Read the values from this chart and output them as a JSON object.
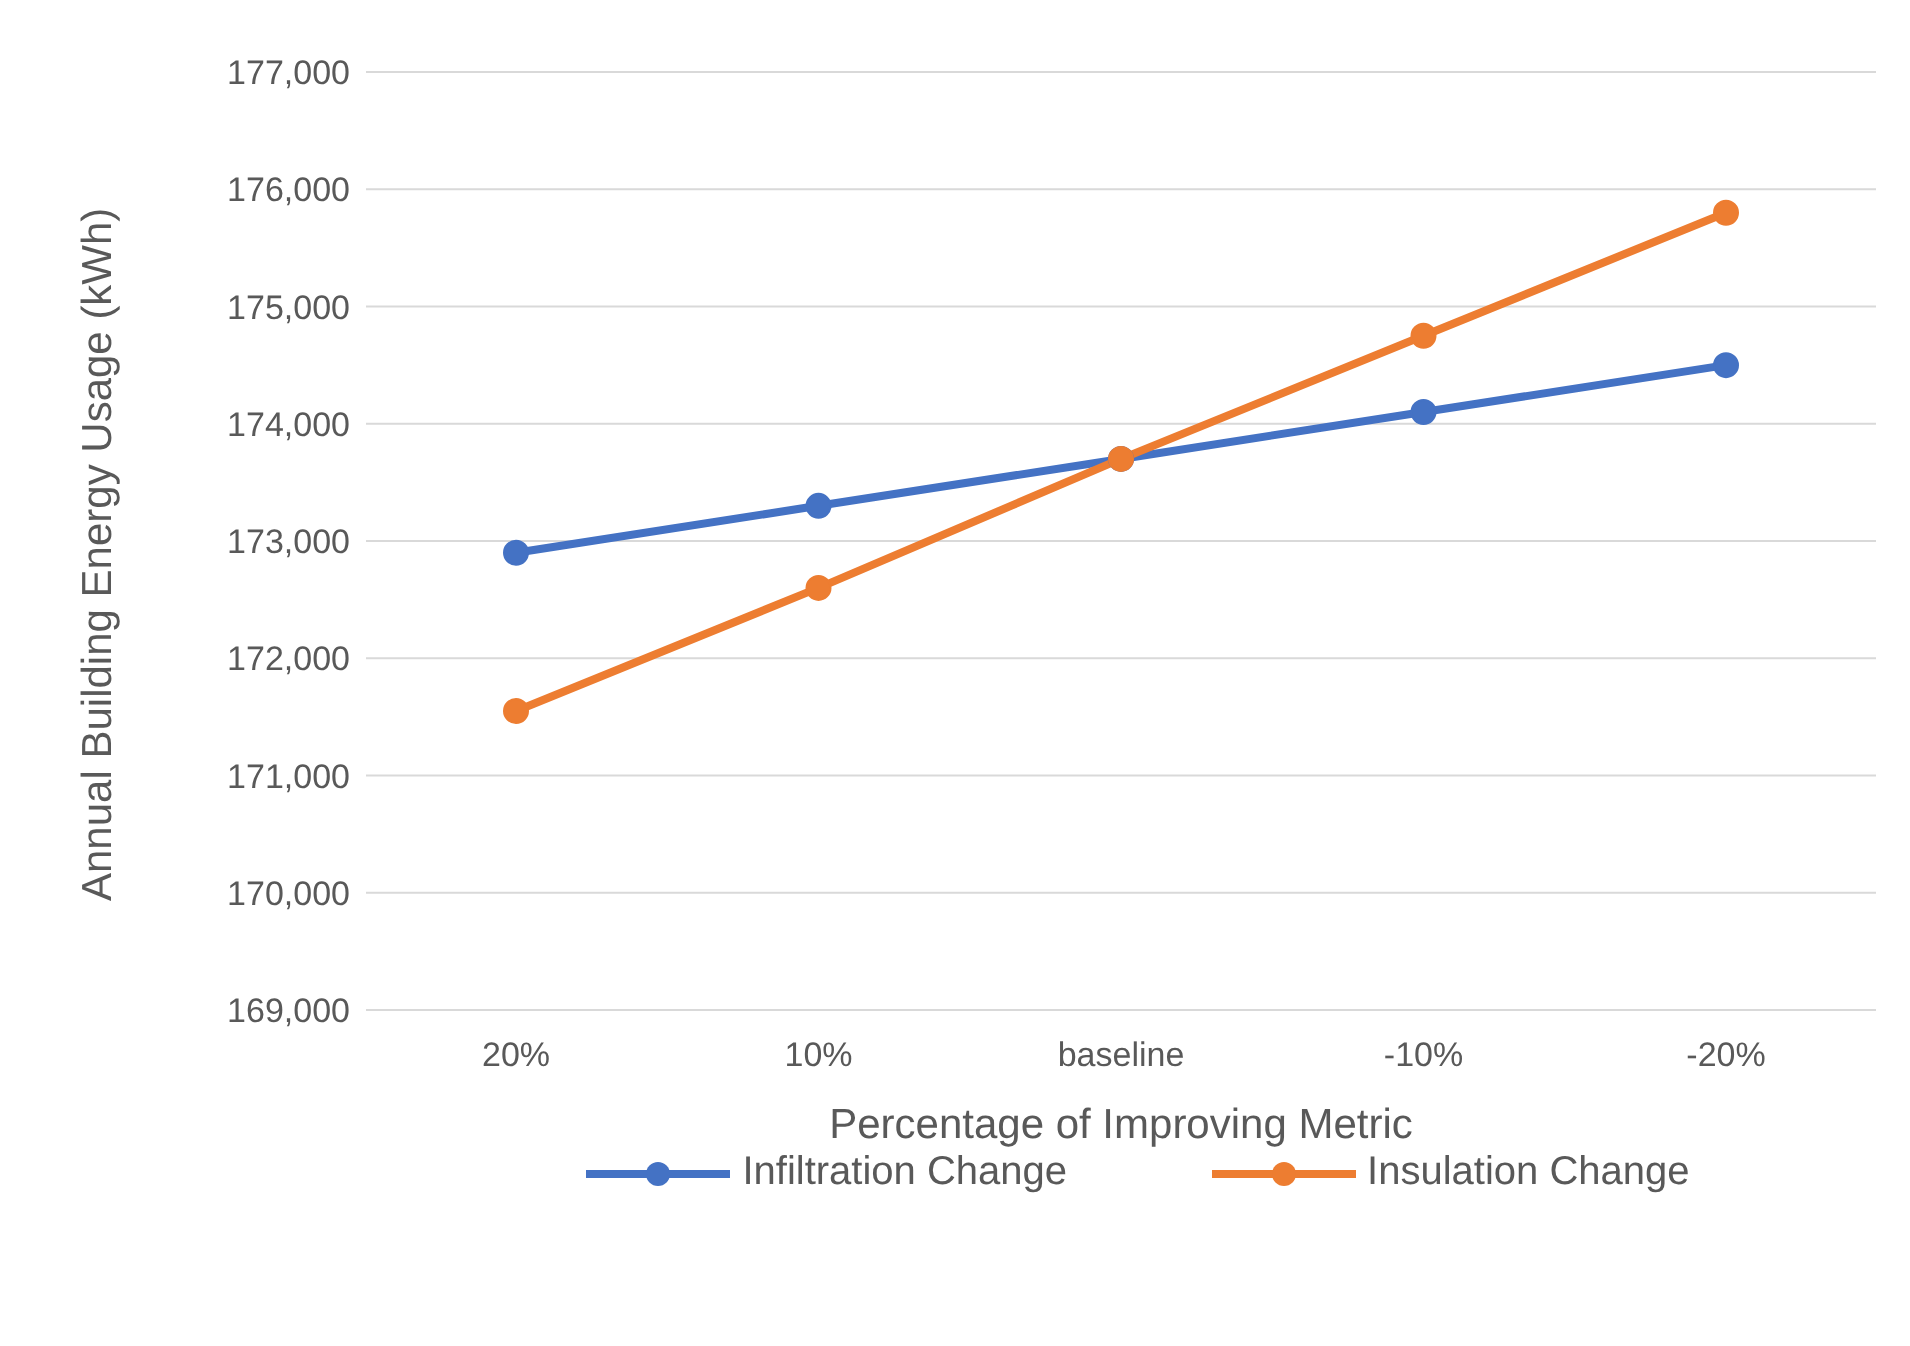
{
  "chart_data": {
    "type": "line",
    "xlabel": "Percentage of Improving Metric",
    "ylabel": "Annual Building Energy Usage (kWh)",
    "categories": [
      "20%",
      "10%",
      "baseline",
      "-10%",
      "-20%"
    ],
    "series": [
      {
        "name": "Infiltration Change",
        "color": "#4472c4",
        "values": [
          172900,
          173300,
          173700,
          174100,
          174500
        ]
      },
      {
        "name": "Insulation Change",
        "color": "#ed7d31",
        "values": [
          171550,
          172600,
          173700,
          174750,
          175800
        ]
      }
    ],
    "ylim": [
      169000,
      177000
    ],
    "yticks": [
      {
        "value": 169000,
        "label": "169,000"
      },
      {
        "value": 170000,
        "label": "170,000"
      },
      {
        "value": 171000,
        "label": "171,000"
      },
      {
        "value": 172000,
        "label": "172,000"
      },
      {
        "value": 173000,
        "label": "173,000"
      },
      {
        "value": 174000,
        "label": "174,000"
      },
      {
        "value": 175000,
        "label": "175,000"
      },
      {
        "value": 176000,
        "label": "176,000"
      },
      {
        "value": 177000,
        "label": "177,000"
      }
    ],
    "grid": "y",
    "legend": "bottom",
    "marker": "circle",
    "line_style": "solid"
  }
}
